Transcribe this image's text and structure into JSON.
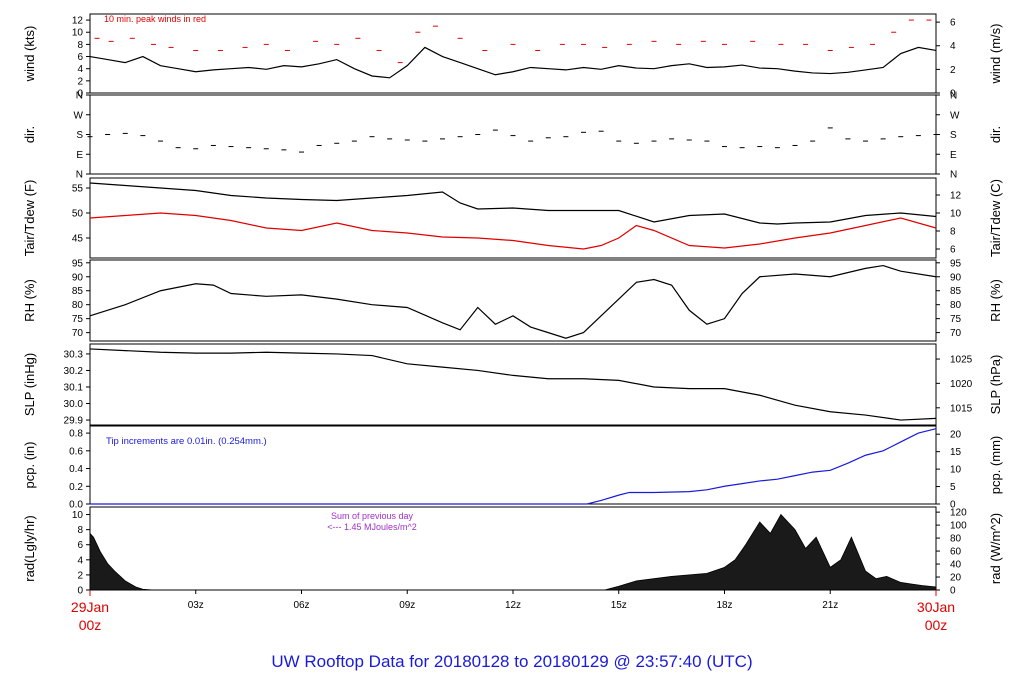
{
  "footer": {
    "title": "UW Rooftop Data for 20180128  to  20180129 @ 23:57:40  (UTC)"
  },
  "chart_data": [
    {
      "type": "line",
      "id": "wind",
      "ylabel_left": "wind (kts)",
      "ylabel_right": "wind (m/s)",
      "ylim": [
        0,
        13
      ],
      "left_ticks": [
        "0",
        "2",
        "4",
        "6",
        "8",
        "10",
        "12"
      ],
      "left_tick_values": [
        0,
        2,
        4,
        6,
        8,
        10,
        12
      ],
      "right_ticks": [
        "0",
        "2",
        "4",
        "6"
      ],
      "right_tick_values_in_left_units": [
        0,
        3.888,
        7.776,
        11.664
      ],
      "annotation": "10 min. peak winds in red",
      "annotation_color": "#e00000",
      "series": [
        {
          "name": "wind speed (kts)",
          "color": "#000000",
          "x": [
            0,
            0.5,
            1,
            1.5,
            2,
            2.5,
            3,
            3.5,
            4,
            4.5,
            5,
            5.5,
            6,
            6.5,
            7,
            7.5,
            8,
            8.5,
            9,
            9.5,
            10,
            10.5,
            11,
            11.5,
            12,
            12.5,
            13,
            13.5,
            14,
            14.5,
            15,
            15.5,
            16,
            16.5,
            17,
            17.5,
            18,
            18.5,
            19,
            19.5,
            20,
            20.5,
            21,
            21.5,
            22,
            22.5,
            23,
            23.5,
            24
          ],
          "y": [
            6,
            5.5,
            5,
            6,
            4.5,
            4,
            3.5,
            3.8,
            4,
            4.2,
            3.9,
            4.5,
            4.3,
            4.8,
            5.5,
            4,
            2.8,
            2.5,
            4.5,
            7.5,
            6,
            5,
            4,
            3,
            3.5,
            4.2,
            4,
            3.8,
            4.2,
            3.9,
            4.5,
            4.1,
            4,
            4.5,
            4.8,
            4.2,
            4.3,
            4.6,
            4.1,
            4,
            3.6,
            3.3,
            3.2,
            3.4,
            3.8,
            4.2,
            6.5,
            7.5,
            7
          ]
        },
        {
          "name": "10 min peak wind (kts)",
          "color": "#e00000",
          "x": [
            0.2,
            0.6,
            1.2,
            1.8,
            2.3,
            3,
            3.7,
            4.4,
            5,
            5.6,
            6.4,
            7,
            7.6,
            8.2,
            8.8,
            9.3,
            9.8,
            10.5,
            11.2,
            12,
            12.7,
            13.4,
            14,
            14.6,
            15.3,
            16,
            16.7,
            17.4,
            18,
            18.8,
            19.6,
            20.3,
            21,
            21.6,
            22.2,
            22.8,
            23.3,
            23.8
          ],
          "y": [
            9,
            8.5,
            9,
            8,
            7.5,
            7,
            7,
            7.5,
            8,
            7,
            8.5,
            8,
            9,
            7,
            5,
            10,
            11,
            9,
            7,
            8,
            7,
            8,
            8,
            7.5,
            8,
            8.5,
            8,
            8.5,
            8,
            8.5,
            8,
            8,
            7,
            7.5,
            8,
            10,
            12,
            12
          ]
        }
      ]
    },
    {
      "type": "scatter",
      "id": "dir",
      "ylabel_left": "dir.",
      "ylabel_right": "dir.",
      "ylim": [
        0,
        360
      ],
      "left_ticks": [
        "N",
        "E",
        "S",
        "W",
        "N"
      ],
      "left_tick_values": [
        0,
        90,
        180,
        270,
        360
      ],
      "right_ticks": [
        "N",
        "E",
        "S",
        "W",
        "N"
      ],
      "right_tick_values_in_left_units": [
        0,
        90,
        180,
        270,
        360
      ],
      "series": [
        {
          "name": "wind direction (deg)",
          "color": "#000000",
          "x": [
            0,
            0.5,
            1,
            1.5,
            2,
            2.5,
            3,
            3.5,
            4,
            4.5,
            5,
            5.5,
            6,
            6.5,
            7,
            7.5,
            8,
            8.5,
            9,
            9.5,
            10,
            10.5,
            11,
            11.5,
            12,
            12.5,
            13,
            13.5,
            14,
            14.5,
            15,
            15.5,
            16,
            16.5,
            17,
            17.5,
            18,
            18.5,
            19,
            19.5,
            20,
            20.5,
            21,
            21.5,
            22,
            22.5,
            23,
            23.5,
            24
          ],
          "y": [
            170,
            180,
            185,
            175,
            150,
            120,
            115,
            130,
            125,
            120,
            115,
            110,
            100,
            130,
            140,
            150,
            170,
            160,
            155,
            150,
            160,
            170,
            180,
            200,
            175,
            150,
            165,
            170,
            190,
            195,
            150,
            140,
            150,
            160,
            155,
            150,
            125,
            120,
            125,
            120,
            130,
            150,
            210,
            160,
            150,
            160,
            170,
            175,
            180
          ]
        }
      ]
    },
    {
      "type": "line",
      "id": "temp",
      "ylabel_left": "Tair/Tdew (F)",
      "ylabel_right": "Tair/Tdew (C)",
      "ylim": [
        41,
        57
      ],
      "left_ticks": [
        "45",
        "50",
        "55"
      ],
      "left_tick_values": [
        45,
        50,
        55
      ],
      "right_ticks": [
        "6",
        "8",
        "10",
        "12"
      ],
      "right_tick_values_in_left_units": [
        42.8,
        46.4,
        50,
        53.6
      ],
      "series": [
        {
          "name": "Tair (F)",
          "color": "#000000",
          "x": [
            0,
            1,
            2,
            3,
            4,
            5,
            6,
            7,
            8,
            9,
            10,
            10.5,
            11,
            12,
            13,
            14,
            15,
            16,
            17,
            18,
            19,
            19.5,
            20,
            21,
            22,
            23,
            24
          ],
          "y": [
            56,
            55.5,
            55,
            54.5,
            53.5,
            53,
            52.7,
            52.5,
            53,
            53.5,
            54.2,
            52,
            50.8,
            51,
            50.5,
            50.5,
            50.5,
            48.2,
            49.5,
            49.8,
            48,
            47.8,
            48,
            48.2,
            49.5,
            50,
            49.3
          ]
        },
        {
          "name": "Tdew (F)",
          "color": "#e00000",
          "x": [
            0,
            1,
            2,
            3,
            4,
            5,
            6,
            7,
            8,
            9,
            10,
            11,
            12,
            13,
            14,
            14.5,
            15,
            15.5,
            16,
            17,
            18,
            19,
            20,
            21,
            22,
            23,
            24
          ],
          "y": [
            49,
            49.5,
            50,
            49.5,
            48.5,
            47,
            46.5,
            48,
            46.5,
            46,
            45.2,
            45,
            44.5,
            43.5,
            42.8,
            43.5,
            45,
            47.5,
            46.5,
            43.5,
            43,
            43.8,
            45,
            46,
            47.5,
            49,
            47
          ]
        }
      ]
    },
    {
      "type": "line",
      "id": "rh",
      "ylabel_left": "RH (%)",
      "ylabel_right": "RH (%)",
      "ylim": [
        67,
        96
      ],
      "left_ticks": [
        "70",
        "75",
        "80",
        "85",
        "90",
        "95"
      ],
      "left_tick_values": [
        70,
        75,
        80,
        85,
        90,
        95
      ],
      "right_ticks": [
        "70",
        "75",
        "80",
        "85",
        "90",
        "95"
      ],
      "right_tick_values_in_left_units": [
        70,
        75,
        80,
        85,
        90,
        95
      ],
      "series": [
        {
          "name": "relative humidity (%)",
          "color": "#000000",
          "x": [
            0,
            1,
            2,
            3,
            3.5,
            4,
            5,
            6,
            7,
            8,
            9,
            10,
            10.5,
            11,
            11.5,
            12,
            12.5,
            13,
            13.5,
            14,
            15,
            15.5,
            16,
            16.5,
            17,
            17.5,
            18,
            18.5,
            19,
            20,
            21,
            22,
            22.5,
            23,
            24
          ],
          "y": [
            76,
            80,
            85,
            87.5,
            87,
            84,
            83,
            83.5,
            82,
            80,
            79,
            73.5,
            71,
            79,
            73,
            76,
            72,
            70,
            68,
            70,
            82,
            88,
            89,
            87,
            78,
            73,
            75,
            84,
            90,
            91,
            90,
            93,
            94,
            92,
            90
          ]
        }
      ]
    },
    {
      "type": "line",
      "id": "slp",
      "ylabel_left": "SLP (inHg)",
      "ylabel_right": "SLP (hPa)",
      "ylim": [
        29.87,
        30.36
      ],
      "left_ticks": [
        "29.9",
        "30.0",
        "30.1",
        "30.2",
        "30.3"
      ],
      "left_tick_values": [
        29.9,
        30.0,
        30.1,
        30.2,
        30.3
      ],
      "right_ticks": [
        "1015",
        "1020",
        "1025"
      ],
      "right_tick_values_in_left_units": [
        29.974,
        30.122,
        30.269
      ],
      "series": [
        {
          "name": "sea level pressure (inHg)",
          "color": "#000000",
          "x": [
            0,
            1,
            2,
            3,
            4,
            5,
            6,
            7,
            8,
            9,
            10,
            11,
            12,
            13,
            14,
            15,
            16,
            17,
            18,
            19,
            20,
            21,
            22,
            23,
            24
          ],
          "y": [
            30.33,
            30.32,
            30.31,
            30.305,
            30.305,
            30.31,
            30.305,
            30.3,
            30.29,
            30.24,
            30.22,
            30.2,
            30.17,
            30.15,
            30.15,
            30.14,
            30.1,
            30.09,
            30.09,
            30.05,
            29.99,
            29.95,
            29.93,
            29.9,
            29.91
          ]
        }
      ]
    },
    {
      "type": "line",
      "id": "pcp",
      "ylabel_left": "pcp. (in)",
      "ylabel_right": "pcp. (mm)",
      "ylim": [
        0,
        0.88
      ],
      "left_ticks": [
        "0.0",
        "0.2",
        "0.4",
        "0.6",
        "0.8"
      ],
      "left_tick_values": [
        0.0,
        0.2,
        0.4,
        0.6,
        0.8
      ],
      "right_ticks": [
        "0",
        "5",
        "10",
        "15",
        "20"
      ],
      "right_tick_values_in_left_units": [
        0,
        0.19685,
        0.3937,
        0.59055,
        0.7874
      ],
      "annotation": "Tip increments are 0.01in. (0.254mm.)",
      "annotation_color": "#1a1adb",
      "series": [
        {
          "name": "precipitation (in)",
          "color": "#1a1adb",
          "x": [
            0,
            14.1,
            14.5,
            15,
            15.3,
            16,
            17,
            17.5,
            18,
            18.5,
            19,
            19.5,
            20,
            20.5,
            21,
            21.5,
            22,
            22.5,
            23,
            23.5,
            24
          ],
          "y": [
            0,
            0,
            0.04,
            0.1,
            0.13,
            0.13,
            0.14,
            0.16,
            0.2,
            0.23,
            0.26,
            0.28,
            0.32,
            0.36,
            0.38,
            0.46,
            0.55,
            0.6,
            0.7,
            0.8,
            0.85
          ]
        }
      ]
    },
    {
      "type": "area",
      "id": "rad",
      "ylabel_left": "rad(Lgly/hr)",
      "ylabel_right": "rad (W/m^2)",
      "ylim": [
        0,
        11
      ],
      "left_ticks": [
        "0",
        "2",
        "4",
        "6",
        "8",
        "10"
      ],
      "left_tick_values": [
        0,
        2,
        4,
        6,
        8,
        10
      ],
      "right_ticks": [
        "0",
        "20",
        "40",
        "60",
        "80",
        "100",
        "120"
      ],
      "right_tick_values_in_left_units": [
        0,
        1.72,
        3.44,
        5.16,
        6.88,
        8.6,
        10.32
      ],
      "annotation": [
        "Sum of previous day",
        "<--- 1.45 MJoules/m^2"
      ],
      "annotation_color": "#a030c8",
      "series": [
        {
          "name": "solar radiation (Lgly/hr)",
          "color": "#000000",
          "x": [
            0,
            0.1,
            0.3,
            0.5,
            0.7,
            1,
            1.3,
            1.5,
            1.8,
            14.6,
            15,
            15.5,
            16,
            16.5,
            17,
            17.5,
            18,
            18.3,
            18.6,
            19,
            19.3,
            19.6,
            20,
            20.3,
            20.6,
            21,
            21.3,
            21.6,
            22,
            22.3,
            22.6,
            23,
            23.3,
            23.6,
            24
          ],
          "y": [
            7.5,
            7,
            5,
            3.5,
            2.5,
            1.2,
            0.4,
            0.1,
            0,
            0,
            0.5,
            1.2,
            1.5,
            1.8,
            2,
            2.2,
            3,
            4,
            6,
            9,
            7.5,
            10,
            8,
            5.5,
            7,
            3,
            4,
            7,
            2.5,
            1.5,
            1.8,
            1,
            0.8,
            0.6,
            0.4
          ]
        }
      ]
    }
  ],
  "x_axis": {
    "ticks": [
      "03z",
      "06z",
      "09z",
      "12z",
      "15z",
      "18z",
      "21z"
    ],
    "tick_hours": [
      3,
      6,
      9,
      12,
      15,
      18,
      21
    ],
    "start_label": [
      "29Jan",
      "00z"
    ],
    "end_label": [
      "30Jan",
      "00z"
    ],
    "end_label_color": "#e00000",
    "range_hours": [
      0,
      24
    ]
  }
}
